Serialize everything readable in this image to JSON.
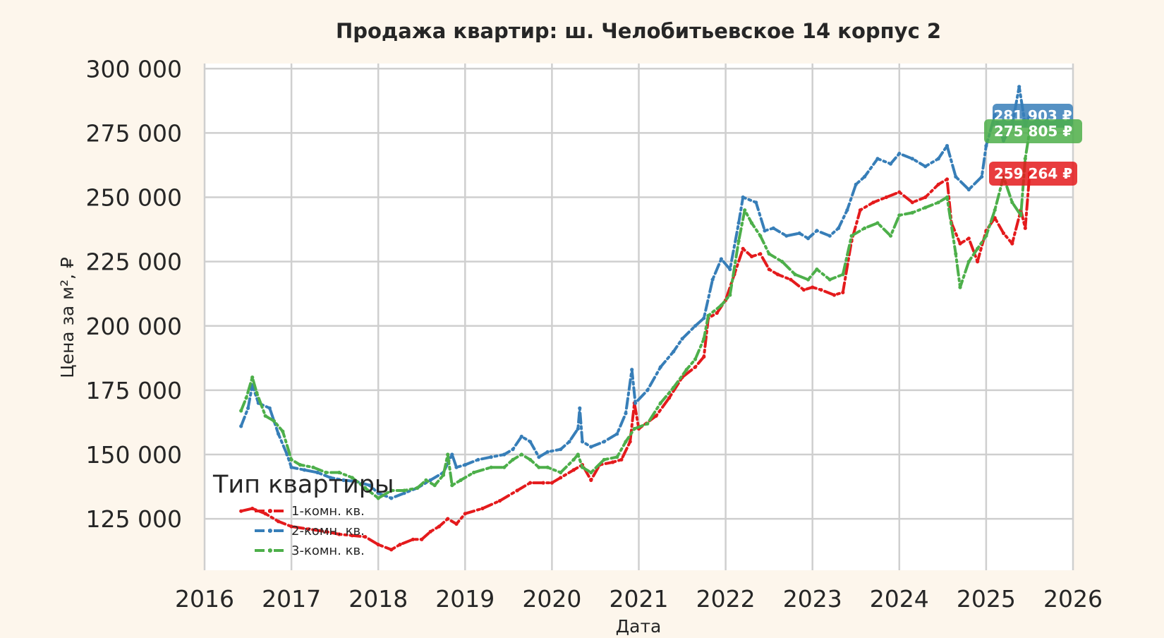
{
  "chart_data": {
    "type": "line",
    "title": "Продажа квартир: ш. Челобитьевское 14 корпус 2",
    "xlabel": "Дата",
    "ylabel": "Цена за м², ₽",
    "xlim": [
      2016,
      2026
    ],
    "ylim": [
      105000,
      302000
    ],
    "x_ticks": [
      2016,
      2017,
      2018,
      2019,
      2020,
      2021,
      2022,
      2023,
      2024,
      2025,
      2026
    ],
    "x_tick_labels": [
      "2016",
      "2017",
      "2018",
      "2019",
      "2020",
      "2021",
      "2022",
      "2023",
      "2024",
      "2025",
      "2026"
    ],
    "y_ticks": [
      125000,
      150000,
      175000,
      200000,
      225000,
      250000,
      275000,
      300000
    ],
    "y_tick_labels": [
      "125 000",
      "150 000",
      "175 000",
      "200 000",
      "225 000",
      "250 000",
      "275 000",
      "300 000"
    ],
    "grid": true,
    "legend": {
      "title": "Тип квартиры",
      "position": "lower-left"
    },
    "series": [
      {
        "name": "1-комн. кв.",
        "color": "#e41a1c",
        "last_label": "259 264 ₽",
        "points": [
          [
            2016.42,
            128000
          ],
          [
            2016.55,
            129000
          ],
          [
            2016.7,
            127000
          ],
          [
            2016.85,
            124000
          ],
          [
            2017.0,
            122000
          ],
          [
            2017.2,
            121000
          ],
          [
            2017.4,
            120000
          ],
          [
            2017.55,
            119000
          ],
          [
            2017.7,
            118500
          ],
          [
            2017.85,
            118000
          ],
          [
            2018.0,
            115000
          ],
          [
            2018.15,
            113000
          ],
          [
            2018.25,
            115000
          ],
          [
            2018.4,
            117000
          ],
          [
            2018.5,
            117000
          ],
          [
            2018.6,
            120000
          ],
          [
            2018.7,
            122000
          ],
          [
            2018.8,
            125000
          ],
          [
            2018.9,
            123000
          ],
          [
            2019.0,
            127000
          ],
          [
            2019.2,
            129000
          ],
          [
            2019.4,
            132000
          ],
          [
            2019.6,
            136000
          ],
          [
            2019.75,
            139000
          ],
          [
            2019.9,
            139000
          ],
          [
            2020.0,
            139000
          ],
          [
            2020.1,
            141000
          ],
          [
            2020.25,
            144000
          ],
          [
            2020.35,
            146000
          ],
          [
            2020.45,
            140000
          ],
          [
            2020.55,
            146000
          ],
          [
            2020.7,
            147000
          ],
          [
            2020.8,
            148000
          ],
          [
            2020.9,
            155000
          ],
          [
            2020.95,
            170000
          ],
          [
            2021.0,
            160000
          ],
          [
            2021.2,
            165000
          ],
          [
            2021.35,
            172000
          ],
          [
            2021.5,
            180000
          ],
          [
            2021.65,
            184000
          ],
          [
            2021.75,
            188000
          ],
          [
            2021.8,
            203000
          ],
          [
            2021.9,
            205000
          ],
          [
            2022.0,
            210000
          ],
          [
            2022.1,
            220000
          ],
          [
            2022.2,
            230000
          ],
          [
            2022.3,
            227000
          ],
          [
            2022.4,
            228000
          ],
          [
            2022.5,
            222000
          ],
          [
            2022.6,
            220000
          ],
          [
            2022.75,
            218000
          ],
          [
            2022.9,
            214000
          ],
          [
            2023.0,
            215000
          ],
          [
            2023.1,
            214000
          ],
          [
            2023.25,
            212000
          ],
          [
            2023.35,
            213000
          ],
          [
            2023.45,
            233000
          ],
          [
            2023.55,
            245000
          ],
          [
            2023.7,
            248000
          ],
          [
            2023.85,
            250000
          ],
          [
            2024.0,
            252000
          ],
          [
            2024.15,
            248000
          ],
          [
            2024.3,
            250000
          ],
          [
            2024.45,
            255000
          ],
          [
            2024.55,
            257000
          ],
          [
            2024.6,
            240000
          ],
          [
            2024.7,
            232000
          ],
          [
            2024.8,
            234000
          ],
          [
            2024.9,
            225000
          ],
          [
            2025.0,
            237000
          ],
          [
            2025.1,
            242000
          ],
          [
            2025.2,
            236000
          ],
          [
            2025.3,
            232000
          ],
          [
            2025.4,
            245000
          ],
          [
            2025.45,
            238000
          ],
          [
            2025.5,
            259264
          ]
        ]
      },
      {
        "name": "2-комн. кв.",
        "color": "#377eb8",
        "last_label": "281 903 ₽",
        "points": [
          [
            2016.42,
            161000
          ],
          [
            2016.5,
            168000
          ],
          [
            2016.55,
            177000
          ],
          [
            2016.62,
            170000
          ],
          [
            2016.75,
            168000
          ],
          [
            2016.85,
            158000
          ],
          [
            2016.95,
            150000
          ],
          [
            2017.0,
            145000
          ],
          [
            2017.15,
            144000
          ],
          [
            2017.3,
            143000
          ],
          [
            2017.45,
            141000
          ],
          [
            2017.6,
            140000
          ],
          [
            2017.75,
            139500
          ],
          [
            2017.9,
            138000
          ],
          [
            2018.0,
            135000
          ],
          [
            2018.15,
            133000
          ],
          [
            2018.3,
            135000
          ],
          [
            2018.45,
            137000
          ],
          [
            2018.6,
            140000
          ],
          [
            2018.75,
            143000
          ],
          [
            2018.85,
            150000
          ],
          [
            2018.9,
            145000
          ],
          [
            2019.0,
            146000
          ],
          [
            2019.15,
            148000
          ],
          [
            2019.3,
            149000
          ],
          [
            2019.45,
            150000
          ],
          [
            2019.55,
            152000
          ],
          [
            2019.65,
            157000
          ],
          [
            2019.75,
            155000
          ],
          [
            2019.85,
            149000
          ],
          [
            2019.95,
            151000
          ],
          [
            2020.1,
            152000
          ],
          [
            2020.2,
            155000
          ],
          [
            2020.3,
            160000
          ],
          [
            2020.32,
            168000
          ],
          [
            2020.35,
            155000
          ],
          [
            2020.45,
            153000
          ],
          [
            2020.6,
            155000
          ],
          [
            2020.75,
            158000
          ],
          [
            2020.85,
            166000
          ],
          [
            2020.92,
            183000
          ],
          [
            2020.96,
            170000
          ],
          [
            2021.1,
            175000
          ],
          [
            2021.25,
            184000
          ],
          [
            2021.4,
            190000
          ],
          [
            2021.5,
            195000
          ],
          [
            2021.65,
            200000
          ],
          [
            2021.75,
            203000
          ],
          [
            2021.85,
            218000
          ],
          [
            2021.95,
            226000
          ],
          [
            2022.05,
            222000
          ],
          [
            2022.15,
            240000
          ],
          [
            2022.2,
            250000
          ],
          [
            2022.35,
            248000
          ],
          [
            2022.45,
            237000
          ],
          [
            2022.55,
            238000
          ],
          [
            2022.7,
            235000
          ],
          [
            2022.85,
            236000
          ],
          [
            2022.95,
            234000
          ],
          [
            2023.05,
            237000
          ],
          [
            2023.2,
            235000
          ],
          [
            2023.3,
            238000
          ],
          [
            2023.4,
            245000
          ],
          [
            2023.5,
            255000
          ],
          [
            2023.6,
            258000
          ],
          [
            2023.75,
            265000
          ],
          [
            2023.9,
            263000
          ],
          [
            2024.0,
            267000
          ],
          [
            2024.15,
            265000
          ],
          [
            2024.3,
            262000
          ],
          [
            2024.45,
            265000
          ],
          [
            2024.55,
            270000
          ],
          [
            2024.65,
            258000
          ],
          [
            2024.8,
            253000
          ],
          [
            2024.95,
            258000
          ],
          [
            2025.0,
            270000
          ],
          [
            2025.1,
            282000
          ],
          [
            2025.2,
            272000
          ],
          [
            2025.3,
            278000
          ],
          [
            2025.38,
            293000
          ],
          [
            2025.45,
            278000
          ],
          [
            2025.5,
            281903
          ]
        ]
      },
      {
        "name": "3-комн. кв.",
        "color": "#4daf4a",
        "last_label": "275 805 ₽",
        "points": [
          [
            2016.42,
            167000
          ],
          [
            2016.48,
            172000
          ],
          [
            2016.55,
            180000
          ],
          [
            2016.6,
            174000
          ],
          [
            2016.7,
            165000
          ],
          [
            2016.8,
            163000
          ],
          [
            2016.9,
            159000
          ],
          [
            2017.0,
            148000
          ],
          [
            2017.1,
            146000
          ],
          [
            2017.25,
            145000
          ],
          [
            2017.4,
            143000
          ],
          [
            2017.55,
            143000
          ],
          [
            2017.7,
            141000
          ],
          [
            2017.85,
            137000
          ],
          [
            2018.0,
            133000
          ],
          [
            2018.15,
            136000
          ],
          [
            2018.3,
            136000
          ],
          [
            2018.45,
            137000
          ],
          [
            2018.55,
            140000
          ],
          [
            2018.65,
            138000
          ],
          [
            2018.75,
            142000
          ],
          [
            2018.8,
            150000
          ],
          [
            2018.85,
            138000
          ],
          [
            2018.95,
            140000
          ],
          [
            2019.1,
            143000
          ],
          [
            2019.3,
            145000
          ],
          [
            2019.45,
            145000
          ],
          [
            2019.55,
            148000
          ],
          [
            2019.65,
            150000
          ],
          [
            2019.75,
            148000
          ],
          [
            2019.85,
            145000
          ],
          [
            2019.95,
            145000
          ],
          [
            2020.1,
            143000
          ],
          [
            2020.25,
            148000
          ],
          [
            2020.3,
            150000
          ],
          [
            2020.35,
            145000
          ],
          [
            2020.45,
            143000
          ],
          [
            2020.6,
            148000
          ],
          [
            2020.75,
            149000
          ],
          [
            2020.85,
            155000
          ],
          [
            2020.95,
            160000
          ],
          [
            2021.1,
            162000
          ],
          [
            2021.25,
            170000
          ],
          [
            2021.4,
            176000
          ],
          [
            2021.55,
            183000
          ],
          [
            2021.65,
            187000
          ],
          [
            2021.75,
            195000
          ],
          [
            2021.8,
            204000
          ],
          [
            2021.95,
            208000
          ],
          [
            2022.05,
            212000
          ],
          [
            2022.15,
            233000
          ],
          [
            2022.22,
            245000
          ],
          [
            2022.3,
            240000
          ],
          [
            2022.4,
            235000
          ],
          [
            2022.5,
            228000
          ],
          [
            2022.65,
            225000
          ],
          [
            2022.8,
            220000
          ],
          [
            2022.95,
            218000
          ],
          [
            2023.05,
            222000
          ],
          [
            2023.2,
            218000
          ],
          [
            2023.35,
            220000
          ],
          [
            2023.45,
            235000
          ],
          [
            2023.6,
            238000
          ],
          [
            2023.75,
            240000
          ],
          [
            2023.9,
            235000
          ],
          [
            2024.0,
            243000
          ],
          [
            2024.15,
            244000
          ],
          [
            2024.3,
            246000
          ],
          [
            2024.45,
            248000
          ],
          [
            2024.55,
            250000
          ],
          [
            2024.65,
            228000
          ],
          [
            2024.7,
            215000
          ],
          [
            2024.8,
            225000
          ],
          [
            2024.9,
            230000
          ],
          [
            2025.0,
            235000
          ],
          [
            2025.1,
            245000
          ],
          [
            2025.2,
            258000
          ],
          [
            2025.3,
            248000
          ],
          [
            2025.4,
            243000
          ],
          [
            2025.45,
            265000
          ],
          [
            2025.5,
            275805
          ]
        ]
      }
    ]
  }
}
